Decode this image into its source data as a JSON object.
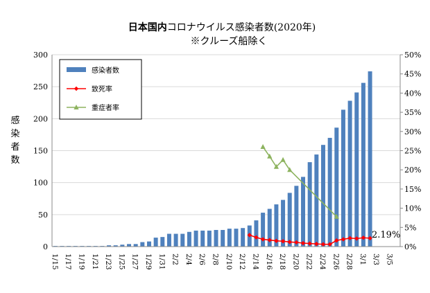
{
  "chart_data": {
    "type": "bar",
    "title_bold": "日本国内",
    "title_rest": "コロナウイルス感染者数(2020年)",
    "subtitle": "※クルーズ船除く",
    "ylabel_chars": [
      "感",
      "染",
      "者",
      "数"
    ],
    "categories": [
      "1/15",
      "1/16",
      "1/17",
      "1/18",
      "1/19",
      "1/20",
      "1/21",
      "1/22",
      "1/23",
      "1/24",
      "1/25",
      "1/26",
      "1/27",
      "1/28",
      "1/29",
      "1/30",
      "1/31",
      "2/1",
      "2/2",
      "2/3",
      "2/4",
      "2/5",
      "2/6",
      "2/7",
      "2/8",
      "2/9",
      "2/10",
      "2/11",
      "2/12",
      "2/13",
      "2/14",
      "2/15",
      "2/16",
      "2/17",
      "2/18",
      "2/19",
      "2/20",
      "2/21",
      "2/22",
      "2/23",
      "2/24",
      "2/25",
      "2/26",
      "2/27",
      "2/28",
      "2/29",
      "3/1",
      "3/2",
      "3/3",
      "3/4",
      "3/5",
      "3/6"
    ],
    "x_tick_labels": [
      "1/15",
      "1/17",
      "1/19",
      "1/21",
      "1/23",
      "1/25",
      "1/27",
      "1/29",
      "1/31",
      "2/2",
      "2/4",
      "2/6",
      "2/8",
      "2/10",
      "2/12",
      "2/14",
      "2/16",
      "2/18",
      "2/20",
      "2/22",
      "2/24",
      "2/26",
      "2/28",
      "3/1",
      "3/3",
      "3/5"
    ],
    "ylim_left": [
      0,
      300
    ],
    "y_ticks_left": [
      "0",
      "50",
      "100",
      "150",
      "200",
      "250",
      "300"
    ],
    "ylim_right": [
      0,
      50
    ],
    "y_ticks_right": [
      "0%",
      "5%",
      "10%",
      "15%",
      "20%",
      "25%",
      "30%",
      "35%",
      "40%",
      "45%",
      "50%"
    ],
    "series": [
      {
        "name": "感染者数",
        "kind": "bar",
        "axis": "left",
        "color": "#4f81bd",
        "values": [
          1,
          1,
          1,
          1,
          1,
          1,
          1,
          1,
          2,
          2,
          3,
          4,
          4,
          7,
          8,
          14,
          15,
          20,
          20,
          20,
          23,
          25,
          25,
          25,
          26,
          26,
          28,
          28,
          29,
          33,
          41,
          53,
          59,
          66,
          73,
          84,
          95,
          109,
          132,
          144,
          159,
          170,
          186,
          214,
          228,
          241,
          256,
          274,
          null,
          null,
          null,
          null
        ]
      },
      {
        "name": "致死率",
        "kind": "line",
        "axis": "right",
        "color": "#ff0000",
        "marker": "diamond",
        "values": [
          null,
          null,
          null,
          null,
          null,
          null,
          null,
          null,
          null,
          null,
          null,
          null,
          null,
          null,
          null,
          null,
          null,
          null,
          null,
          null,
          null,
          null,
          null,
          null,
          null,
          null,
          null,
          null,
          null,
          3.0,
          2.4,
          1.9,
          1.7,
          1.5,
          1.4,
          1.2,
          1.1,
          0.9,
          0.8,
          0.7,
          0.6,
          0.6,
          1.6,
          1.9,
          2.2,
          2.1,
          2.3,
          2.19,
          null,
          null,
          null,
          null
        ]
      },
      {
        "name": "重症者率",
        "kind": "line",
        "axis": "right",
        "color": "#8db35f",
        "marker": "triangle",
        "values": [
          null,
          null,
          null,
          null,
          null,
          null,
          null,
          null,
          null,
          null,
          null,
          null,
          null,
          null,
          null,
          null,
          null,
          null,
          null,
          null,
          null,
          null,
          null,
          null,
          null,
          null,
          null,
          null,
          null,
          null,
          null,
          26.0,
          23.5,
          20.8,
          22.6,
          20.0,
          null,
          null,
          null,
          null,
          null,
          null,
          7.8,
          null,
          null,
          null,
          null,
          null,
          null,
          null,
          null,
          null
        ]
      }
    ],
    "annotation": "2.19%",
    "grid": true,
    "legend_position": "top-left"
  }
}
